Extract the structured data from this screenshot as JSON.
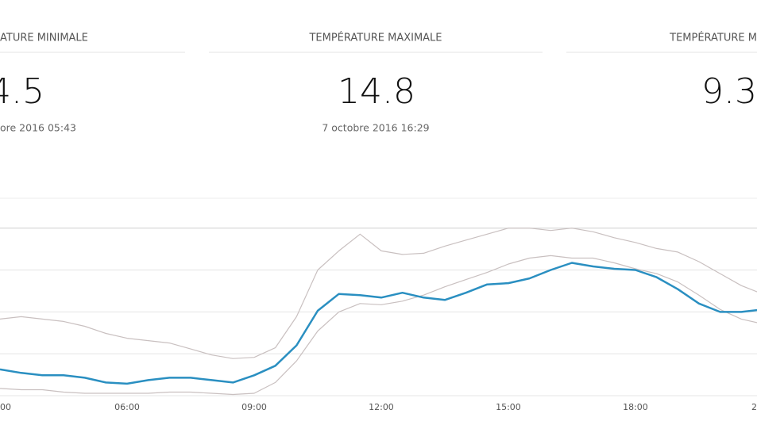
{
  "cards": [
    {
      "title": "ATURE MINIMALE",
      "value": "4.5",
      "date": "ore 2016 05:43"
    },
    {
      "title": "TEMPÉRATURE MAXIMALE",
      "value": "14.8",
      "date": "7 octobre 2016 16:29"
    },
    {
      "title": "TEMPÉRATURE M",
      "value": "9.3"
    }
  ],
  "chart_data": {
    "type": "line",
    "x": [
      3,
      3.5,
      4,
      4.5,
      5,
      5.5,
      6,
      6.5,
      7,
      7.5,
      8,
      8.5,
      9,
      9.5,
      10,
      10.5,
      11,
      11.5,
      12,
      12.5,
      13,
      13.5,
      14,
      14.5,
      15,
      15.5,
      16,
      16.5,
      17,
      17.5,
      18,
      18.5,
      19,
      19.5,
      20,
      20.5,
      21
    ],
    "series": [
      {
        "color": "#c9c0c0",
        "values": [
          9.9,
          10.1,
          9.9,
          9.7,
          9.3,
          8.7,
          8.3,
          8.1,
          7.9,
          7.4,
          6.9,
          6.6,
          6.7,
          7.5,
          10.1,
          14.0,
          15.6,
          17.0,
          15.6,
          15.3,
          15.4,
          16.0,
          16.5,
          17.0,
          17.5,
          17.5,
          17.3,
          17.5,
          17.2,
          16.7,
          16.3,
          15.8,
          15.5,
          14.7,
          13.7,
          12.7,
          12.0
        ]
      },
      {
        "color": "#c9c0c0",
        "values": [
          4.1,
          4.0,
          4.0,
          3.8,
          3.7,
          3.7,
          3.7,
          3.7,
          3.8,
          3.8,
          3.7,
          3.6,
          3.7,
          4.6,
          6.4,
          8.9,
          10.5,
          11.2,
          11.1,
          11.4,
          11.9,
          12.6,
          13.2,
          13.8,
          14.5,
          15.0,
          15.2,
          15.0,
          15.0,
          14.6,
          14.1,
          13.7,
          13.0,
          11.9,
          10.7,
          9.9,
          9.5
        ]
      },
      {
        "color": "#2a8fc1",
        "values": [
          5.7,
          5.4,
          5.2,
          5.2,
          5.0,
          4.6,
          4.5,
          4.8,
          5.0,
          5.0,
          4.8,
          4.6,
          5.2,
          6.0,
          7.7,
          10.6,
          12.0,
          11.9,
          11.7,
          12.1,
          11.7,
          11.5,
          12.1,
          12.8,
          12.9,
          13.3,
          14.0,
          14.6,
          14.3,
          14.1,
          14.0,
          13.4,
          12.4,
          11.2,
          10.5,
          10.5,
          10.7
        ]
      }
    ],
    "xlim": [
      3,
      20.87
    ],
    "xticks": [
      {
        "value": 3,
        "label": "00"
      },
      {
        "value": 6,
        "label": "06:00"
      },
      {
        "value": 9,
        "label": "09:00"
      },
      {
        "value": 12,
        "label": "12:00"
      },
      {
        "value": 15,
        "label": "15:00"
      },
      {
        "value": 18,
        "label": "18:00"
      },
      {
        "value": 21,
        "label": "2"
      }
    ],
    "ylim": [
      3.5,
      20
    ],
    "yticks": [
      3.5,
      7,
      10.5,
      14,
      17.5
    ],
    "grid": true
  }
}
